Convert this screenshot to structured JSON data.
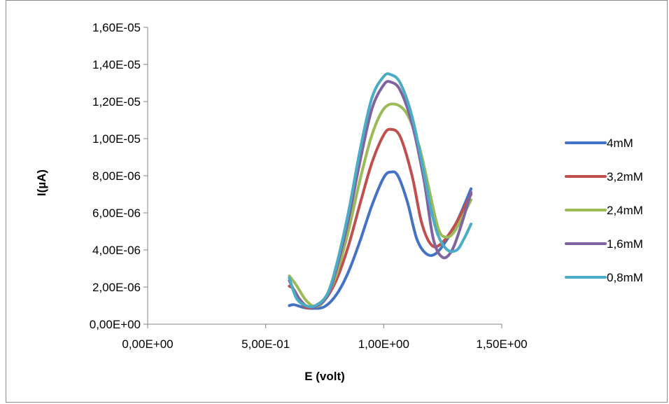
{
  "chart_data": {
    "type": "line",
    "smooth": true,
    "title": "",
    "xlabel": "E (volt)",
    "ylabel": "I(µA)",
    "xlim": [
      0,
      1.5
    ],
    "ylim": [
      0,
      1.6e-05
    ],
    "x_ticks": [
      0,
      0.5,
      1.0,
      1.5
    ],
    "x_tick_labels": [
      "0,00E+00",
      "5,00E-01",
      "1,00E+00",
      "1,50E+00"
    ],
    "y_ticks": [
      0,
      2e-06,
      4e-06,
      6e-06,
      8e-06,
      1e-05,
      1.2e-05,
      1.4e-05,
      1.6e-05
    ],
    "y_tick_labels": [
      "0,00E+00",
      "2,00E-06",
      "4,00E-06",
      "6,00E-06",
      "8,00E-06",
      "1,00E-05",
      "1,20E-05",
      "1,40E-05",
      "1,60E-05"
    ],
    "grid": false,
    "legend_position": "right",
    "series": [
      {
        "name": "4mM",
        "color": "#4472C4",
        "points": [
          [
            0.6,
            1e-06
          ],
          [
            0.62,
            1.05e-06
          ],
          [
            0.66,
            9e-07
          ],
          [
            0.7,
            8.5e-07
          ],
          [
            0.75,
            9.5e-07
          ],
          [
            0.8,
            1.6e-06
          ],
          [
            0.85,
            2.8e-06
          ],
          [
            0.9,
            4.5e-06
          ],
          [
            0.95,
            6.4e-06
          ],
          [
            1.0,
            7.9e-06
          ],
          [
            1.03,
            8.2e-06
          ],
          [
            1.06,
            8e-06
          ],
          [
            1.1,
            6.6e-06
          ],
          [
            1.14,
            4.6e-06
          ],
          [
            1.18,
            3.8e-06
          ],
          [
            1.22,
            3.8e-06
          ],
          [
            1.27,
            4.6e-06
          ],
          [
            1.32,
            5.8e-06
          ],
          [
            1.37,
            7.3e-06
          ]
        ]
      },
      {
        "name": "3,2mM",
        "color": "#C0504D",
        "points": [
          [
            0.6,
            2.05e-06
          ],
          [
            0.62,
            1.85e-06
          ],
          [
            0.66,
            1e-06
          ],
          [
            0.7,
            9e-07
          ],
          [
            0.75,
            1.3e-06
          ],
          [
            0.8,
            2.4e-06
          ],
          [
            0.85,
            4.2e-06
          ],
          [
            0.9,
            6.5e-06
          ],
          [
            0.95,
            8.7e-06
          ],
          [
            1.0,
            1.02e-05
          ],
          [
            1.03,
            1.05e-05
          ],
          [
            1.07,
            1.01e-05
          ],
          [
            1.12,
            8e-06
          ],
          [
            1.16,
            5.5e-06
          ],
          [
            1.2,
            4.3e-06
          ],
          [
            1.24,
            4.3e-06
          ],
          [
            1.3,
            5.3e-06
          ],
          [
            1.37,
            7e-06
          ]
        ]
      },
      {
        "name": "2,4mM",
        "color": "#9BBB59",
        "points": [
          [
            0.6,
            2.6e-06
          ],
          [
            0.63,
            2.1e-06
          ],
          [
            0.67,
            1.3e-06
          ],
          [
            0.71,
            9.5e-07
          ],
          [
            0.75,
            1.3e-06
          ],
          [
            0.8,
            2.7e-06
          ],
          [
            0.85,
            5e-06
          ],
          [
            0.9,
            7.8e-06
          ],
          [
            0.95,
            1.02e-05
          ],
          [
            1.0,
            1.16e-05
          ],
          [
            1.05,
            1.185e-05
          ],
          [
            1.1,
            1.13e-05
          ],
          [
            1.15,
            9.6e-06
          ],
          [
            1.19,
            7.4e-06
          ],
          [
            1.23,
            5.2e-06
          ],
          [
            1.26,
            4.7e-06
          ],
          [
            1.3,
            5e-06
          ],
          [
            1.37,
            6.7e-06
          ]
        ]
      },
      {
        "name": "1,6mM",
        "color": "#8064A2",
        "points": [
          [
            0.6,
            2.35e-06
          ],
          [
            0.63,
            1.6e-06
          ],
          [
            0.67,
            1e-06
          ],
          [
            0.71,
            9.5e-07
          ],
          [
            0.76,
            1.5e-06
          ],
          [
            0.8,
            3e-06
          ],
          [
            0.85,
            5.6e-06
          ],
          [
            0.9,
            8.8e-06
          ],
          [
            0.95,
            1.16e-05
          ],
          [
            1.0,
            1.29e-05
          ],
          [
            1.03,
            1.305e-05
          ],
          [
            1.07,
            1.26e-05
          ],
          [
            1.12,
            1.08e-05
          ],
          [
            1.17,
            7.8e-06
          ],
          [
            1.21,
            4.6e-06
          ],
          [
            1.25,
            3.6e-06
          ],
          [
            1.29,
            4e-06
          ],
          [
            1.33,
            5.4e-06
          ],
          [
            1.37,
            7.1e-06
          ]
        ]
      },
      {
        "name": "0,8mM",
        "color": "#4BACC6",
        "points": [
          [
            0.6,
            2.5e-06
          ],
          [
            0.63,
            1.4e-06
          ],
          [
            0.67,
            1e-06
          ],
          [
            0.71,
            1e-06
          ],
          [
            0.76,
            1.6e-06
          ],
          [
            0.8,
            3.2e-06
          ],
          [
            0.85,
            6e-06
          ],
          [
            0.9,
            9.4e-06
          ],
          [
            0.95,
            1.22e-05
          ],
          [
            1.0,
            1.335e-05
          ],
          [
            1.03,
            1.345e-05
          ],
          [
            1.07,
            1.3e-05
          ],
          [
            1.12,
            1.12e-05
          ],
          [
            1.17,
            8.2e-06
          ],
          [
            1.2,
            6.2e-06
          ],
          [
            1.23,
            4.8e-06
          ],
          [
            1.27,
            4e-06
          ],
          [
            1.31,
            4e-06
          ],
          [
            1.34,
            4.6e-06
          ],
          [
            1.37,
            5.4e-06
          ]
        ]
      }
    ]
  }
}
